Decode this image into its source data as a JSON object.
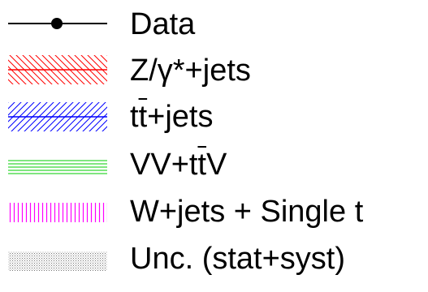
{
  "chart_data": {
    "type": "legend",
    "entries": [
      {
        "label": "Data",
        "symbol": "data-marker",
        "color": "#000000"
      },
      {
        "label": "Z/γ*+jets",
        "symbol": "hatch-back",
        "color": "#ff0000"
      },
      {
        "label": "tt+jets",
        "label_parts": [
          "t",
          "t",
          "+jets"
        ],
        "symbol": "hatch-forward",
        "color": "#0000ff"
      },
      {
        "label": "VV+ttV",
        "label_parts": [
          "VV+t",
          "t",
          "V"
        ],
        "symbol": "hatch-horizontal",
        "color": "#00cc00"
      },
      {
        "label": "W+jets + Single t",
        "symbol": "hatch-vertical",
        "color": "#ff00ff"
      },
      {
        "label": "Unc. (stat+syst)",
        "symbol": "dotted-fill",
        "color": "#888888"
      }
    ]
  }
}
